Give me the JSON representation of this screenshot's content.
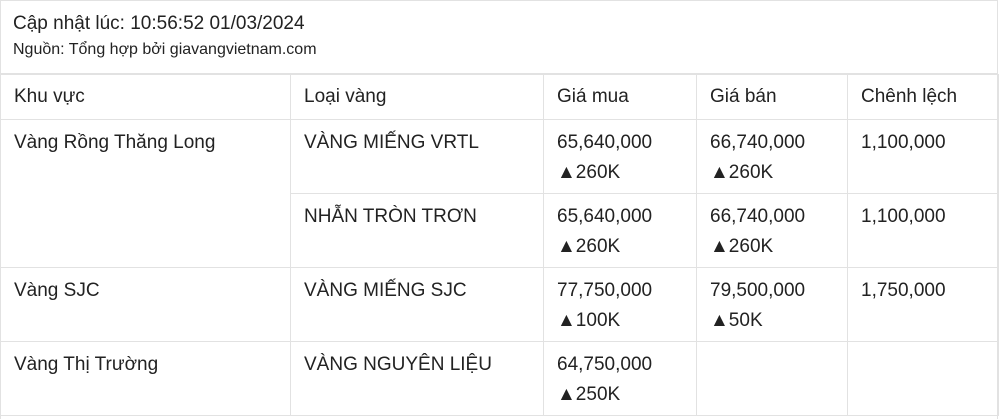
{
  "header": {
    "updated": "Cập nhật lúc: 10:56:52 01/03/2024",
    "source": "Nguồn: Tổng hợp bởi giavangvietnam.com"
  },
  "columns": [
    "Khu vực",
    "Loại vàng",
    "Giá mua",
    "Giá bán",
    "Chênh lệch"
  ],
  "rows": [
    {
      "region": "Vàng Rồng Thăng Long",
      "type": "VÀNG MIẾNG VRTL",
      "buy": "65,640,000",
      "buy_change": "▲260K",
      "sell": "66,740,000",
      "sell_change": "▲260K",
      "diff": "1,100,000"
    },
    {
      "region": "",
      "type": "NHẪN TRÒN TRƠN",
      "buy": "65,640,000",
      "buy_change": "▲260K",
      "sell": "66,740,000",
      "sell_change": "▲260K",
      "diff": "1,100,000"
    },
    {
      "region": "Vàng SJC",
      "type": "VÀNG MIẾNG SJC",
      "buy": "77,750,000",
      "buy_change": "▲100K",
      "sell": "79,500,000",
      "sell_change": "▲50K",
      "diff": "1,750,000"
    },
    {
      "region": "Vàng Thị Trường",
      "type": "VÀNG NGUYÊN LIỆU",
      "buy": "64,750,000",
      "buy_change": "▲250K",
      "sell": "",
      "sell_change": "",
      "diff": ""
    }
  ]
}
